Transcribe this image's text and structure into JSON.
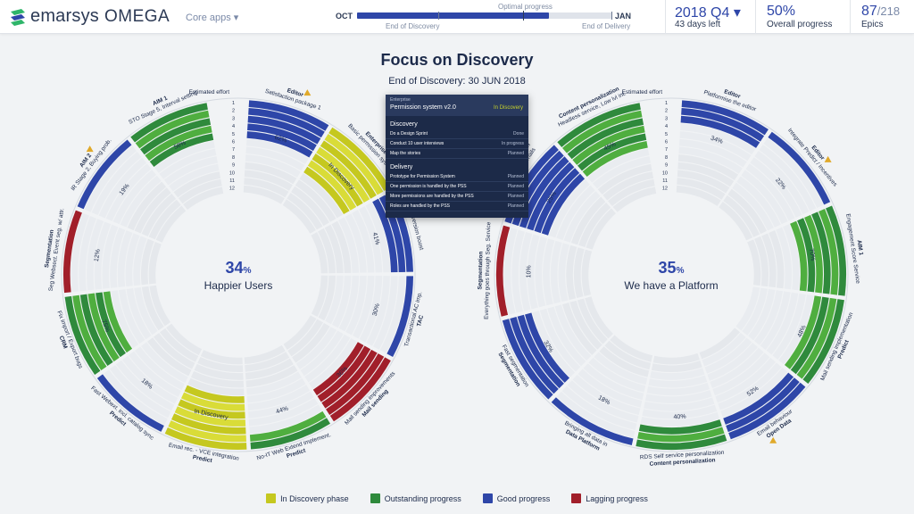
{
  "header": {
    "brand": "emarsys",
    "product": "OMEGA",
    "apps_menu": "Core apps ▾",
    "timeline": {
      "title": "Optimal progress",
      "start_month": "OCT",
      "end_month": "JAN",
      "milestone_left": "End of Discovery",
      "milestone_right": "End of Delivery",
      "progress_fraction": 0.75
    },
    "quarter": "2018 Q4 ▾",
    "days_left": "43 days left",
    "overall_pct": "50%",
    "overall_label": "Overall progress",
    "epics_done": "87",
    "epics_total": "/218",
    "epics_label": "Epics"
  },
  "main": {
    "title": "Focus on Discovery",
    "subtitle": "End of Discovery: 30 JUN 2018"
  },
  "colors": {
    "discovery": "#c5c81f",
    "outstanding": "#2f8a3c",
    "good": "#2e46a8",
    "lagging": "#a11f2a",
    "empty": "#dde1e6"
  },
  "rings": [
    {
      "percent_value": "34",
      "percent_sign": "%",
      "label": "Happier Users",
      "scale_label": "Estimated effort",
      "scale": [
        "1",
        "2",
        "3",
        "4",
        "5",
        "6",
        "7",
        "8",
        "9",
        "10",
        "11",
        "12"
      ],
      "segments": [
        {
          "team": "Editor",
          "epic": "Satisfaction package 1",
          "status": "good",
          "pct": "62%",
          "effort": 8,
          "done": 5,
          "warn": true
        },
        {
          "team": "Enterprise",
          "epic": "Basic permission system",
          "status": "discovery",
          "pct": "In Discovery",
          "effort": 7,
          "done": 4,
          "warn": false
        },
        {
          "team": "",
          "epic": "Conversion boost",
          "status": "good",
          "pct": "41%",
          "effort": 8,
          "done": 3,
          "warn": false
        },
        {
          "team": "TAC",
          "epic": "Transactional AC imp.",
          "status": "good",
          "pct": "30%",
          "effort": 10,
          "done": 1,
          "warn": false
        },
        {
          "team": "Mail sending",
          "epic": "Mail sending improvements",
          "status": "lagging",
          "pct": "36%",
          "effort": 9,
          "done": 5,
          "warn": false
        },
        {
          "team": "Predict",
          "epic": "No-IT Web Extend implement.",
          "status": "outstanding",
          "pct": "44%",
          "effort": 8,
          "done": 2,
          "warn": false
        },
        {
          "team": "Predict",
          "epic": "Email rec. - VCE integration",
          "status": "discovery",
          "pct": "In Discovery",
          "effort": 7,
          "done": 5,
          "warn": false
        },
        {
          "team": "Predict",
          "epic": "Fast Webext. incl. catalog sync",
          "status": "good",
          "pct": "18%",
          "effort": 8,
          "done": 1,
          "warn": false
        },
        {
          "team": "CRM",
          "epic": "Fix import / Export bugs",
          "status": "outstanding",
          "pct": "75%",
          "effort": 10,
          "done": 6,
          "warn": false
        },
        {
          "team": "Segmentation",
          "epic": "Seg Websect. Event seg. w/ attr.",
          "status": "lagging",
          "pct": "12%",
          "effort": 10,
          "done": 1,
          "warn": false
        },
        {
          "team": "AIM 2",
          "epic": "IR Stage 2, Buying prob.",
          "status": "good",
          "pct": "19%",
          "effort": 7,
          "done": 1,
          "warn": true
        },
        {
          "team": "AIM 1",
          "epic": "STO Stage 5, Interval setting",
          "status": "outstanding",
          "pct": "58%",
          "effort": 9,
          "done": 5,
          "warn": false
        }
      ]
    },
    {
      "percent_value": "35",
      "percent_sign": "%",
      "label": "We have a Platform",
      "scale_label": "Estimated effort",
      "scale": [
        "1",
        "2",
        "3",
        "4",
        "5",
        "6",
        "7",
        "8",
        "9",
        "10",
        "11",
        "12"
      ],
      "segments": [
        {
          "team": "Editor",
          "epic": "Platformise the editor",
          "status": "good",
          "pct": "34%",
          "effort": 7,
          "done": 3,
          "warn": false
        },
        {
          "team": "Editor",
          "epic": "Integrate Predict / Incentives",
          "status": "good",
          "pct": "22%",
          "effort": 9,
          "done": 1,
          "warn": true
        },
        {
          "team": "AIM 1",
          "epic": "Engagement Score Service",
          "status": "outstanding",
          "pct": "70%",
          "effort": 8,
          "done": 6,
          "warn": false
        },
        {
          "team": "Predict",
          "epic": "Mail sending implementation",
          "status": "outstanding",
          "pct": "48%",
          "effort": 12,
          "done": 4,
          "warn": false
        },
        {
          "team": "Open Data",
          "epic": "Email behaviour",
          "status": "good",
          "pct": "52%",
          "effort": 11,
          "done": 3,
          "warn": true
        },
        {
          "team": "Content personalization",
          "epic": "RDS Self service personalization",
          "status": "outstanding",
          "pct": "40%",
          "effort": 10,
          "done": 3,
          "warn": false
        },
        {
          "team": "Data Platform",
          "epic": "Bringing all data in",
          "status": "good",
          "pct": "18%",
          "effort": 9,
          "done": 1,
          "warn": false
        },
        {
          "team": "Segmentation",
          "epic": "Fast segmentation",
          "status": "good",
          "pct": "32%",
          "effort": 8,
          "done": 4,
          "warn": false
        },
        {
          "team": "Segmentation",
          "epic": "Everything goes through Seg. Service",
          "status": "lagging",
          "pct": "10%",
          "effort": 9,
          "done": 1,
          "warn": false
        },
        {
          "team": "Content personalization",
          "epic": "RDS Web-Mobile Emails",
          "status": "good",
          "pct": "25%",
          "effort": 9,
          "done": 6,
          "warn": false
        },
        {
          "team": "Content personalization",
          "epic": "Headless service, Low lvl int.",
          "status": "outstanding",
          "pct": "45%",
          "effort": 8,
          "done": 6,
          "warn": false
        }
      ]
    }
  ],
  "tooltip": {
    "eyebrow": "Enterprise",
    "title": "Permission system v2.0",
    "status": "In Discovery",
    "sections": [
      {
        "name": "Discovery",
        "items": [
          {
            "task": "Do a Design Sprint",
            "state": "Done"
          },
          {
            "task": "Conduct 10 user interviews",
            "state": "In progress"
          },
          {
            "task": "Map the stories",
            "state": "Planned"
          }
        ]
      },
      {
        "name": "Delivery",
        "items": [
          {
            "task": "Prototype for Permission System",
            "state": "Planned"
          },
          {
            "task": "One permission is handled by the PSS",
            "state": "Planned"
          },
          {
            "task": "More permissions are handled by the PSS",
            "state": "Planned"
          },
          {
            "task": "Roles are handled by the PSS",
            "state": "Planned"
          }
        ]
      }
    ]
  },
  "legend": [
    {
      "label": "In Discovery phase",
      "key": "discovery"
    },
    {
      "label": "Outstanding progress",
      "key": "outstanding"
    },
    {
      "label": "Good progress",
      "key": "good"
    },
    {
      "label": "Lagging progress",
      "key": "lagging"
    }
  ]
}
